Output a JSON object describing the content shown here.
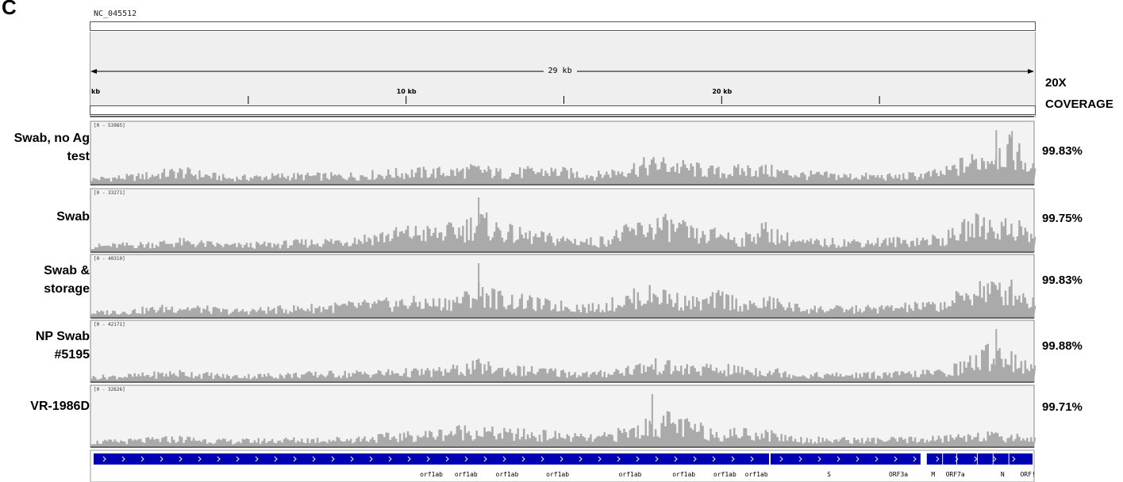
{
  "panel_letter": "C",
  "reference": "NC_045512",
  "scale": {
    "span_label": "29 kb",
    "ticks": [
      "kb",
      "10 kb",
      "20 kb"
    ]
  },
  "coverage_header": [
    "20X",
    "COVERAGE"
  ],
  "colors": {
    "coverage": "#aaaaaa",
    "gene": "#0000b4",
    "track_bg": "#f3f3f3"
  },
  "chart_data": {
    "type": "area",
    "xlabel": "",
    "ylabel": "",
    "x_unit": "kb",
    "x_range": [
      0,
      29.9
    ],
    "series": [
      {
        "name": "Swab, no Ag test",
        "range_label": "[0 - 53985]",
        "max": 53985,
        "coverage": "99.83%",
        "peaks": [
          [
            0,
            0.14
          ],
          [
            1.4,
            0.2
          ],
          [
            2.8,
            0.34
          ],
          [
            4.4,
            0.16
          ],
          [
            6.0,
            0.22
          ],
          [
            8.0,
            0.22
          ],
          [
            10.1,
            0.32
          ],
          [
            11.5,
            0.34
          ],
          [
            12.2,
            0.4
          ],
          [
            13.0,
            0.3
          ],
          [
            14.5,
            0.36
          ],
          [
            16.0,
            0.24
          ],
          [
            17.2,
            0.46
          ],
          [
            18.0,
            0.56
          ],
          [
            18.8,
            0.46
          ],
          [
            20.0,
            0.32
          ],
          [
            21.0,
            0.42
          ],
          [
            22.5,
            0.26
          ],
          [
            24.0,
            0.22
          ],
          [
            25.5,
            0.2
          ],
          [
            27.0,
            0.3
          ],
          [
            27.5,
            0.5
          ],
          [
            28.3,
            0.72
          ],
          [
            28.8,
            0.92
          ],
          [
            29.3,
            0.92
          ],
          [
            29.8,
            0.4
          ]
        ],
        "spikes": [
          [
            28.7,
            1.0
          ],
          [
            29.2,
            0.98
          ]
        ]
      },
      {
        "name": "Swab",
        "range_label": "[0 - 33271]",
        "max": 33271,
        "coverage": "99.75%",
        "peaks": [
          [
            0,
            0.14
          ],
          [
            1.4,
            0.18
          ],
          [
            2.8,
            0.26
          ],
          [
            4.4,
            0.16
          ],
          [
            6.0,
            0.2
          ],
          [
            8.0,
            0.3
          ],
          [
            10.1,
            0.52
          ],
          [
            11.0,
            0.5
          ],
          [
            11.8,
            0.62
          ],
          [
            12.0,
            0.72
          ],
          [
            12.3,
            0.82
          ],
          [
            12.8,
            0.62
          ],
          [
            13.5,
            0.46
          ],
          [
            14.5,
            0.36
          ],
          [
            16.0,
            0.26
          ],
          [
            17.2,
            0.58
          ],
          [
            18.0,
            0.72
          ],
          [
            18.6,
            0.64
          ],
          [
            19.3,
            0.4
          ],
          [
            20.0,
            0.5
          ],
          [
            20.6,
            0.28
          ],
          [
            21.2,
            0.6
          ],
          [
            22.5,
            0.24
          ],
          [
            24.0,
            0.26
          ],
          [
            25.5,
            0.28
          ],
          [
            27.0,
            0.34
          ],
          [
            27.6,
            0.58
          ],
          [
            28.2,
            0.8
          ],
          [
            28.7,
            0.64
          ],
          [
            29.3,
            0.7
          ],
          [
            29.8,
            0.4
          ]
        ],
        "spikes": [
          [
            12.3,
            1.0
          ]
        ]
      },
      {
        "name": "Swab & storage",
        "range_label": "[0 - 40310]",
        "max": 40310,
        "coverage": "99.83%",
        "peaks": [
          [
            0,
            0.12
          ],
          [
            1.4,
            0.18
          ],
          [
            2.8,
            0.28
          ],
          [
            4.4,
            0.16
          ],
          [
            6.0,
            0.22
          ],
          [
            8.0,
            0.3
          ],
          [
            10.1,
            0.4
          ],
          [
            11.0,
            0.38
          ],
          [
            11.8,
            0.5
          ],
          [
            12.3,
            0.72
          ],
          [
            13.0,
            0.5
          ],
          [
            14.5,
            0.34
          ],
          [
            16.0,
            0.26
          ],
          [
            17.2,
            0.54
          ],
          [
            18.0,
            0.66
          ],
          [
            18.6,
            0.46
          ],
          [
            19.3,
            0.38
          ],
          [
            20.0,
            0.54
          ],
          [
            20.8,
            0.3
          ],
          [
            21.5,
            0.42
          ],
          [
            22.5,
            0.24
          ],
          [
            24.0,
            0.22
          ],
          [
            25.5,
            0.26
          ],
          [
            27.0,
            0.34
          ],
          [
            27.6,
            0.56
          ],
          [
            28.2,
            0.82
          ],
          [
            28.7,
            0.72
          ],
          [
            29.3,
            0.74
          ],
          [
            29.8,
            0.42
          ]
        ],
        "spikes": [
          [
            12.3,
            1.0
          ]
        ]
      },
      {
        "name": "NP Swab #5195",
        "range_label": "[0 - 42171]",
        "max": 42171,
        "coverage": "99.88%",
        "peaks": [
          [
            0,
            0.12
          ],
          [
            1.4,
            0.16
          ],
          [
            2.8,
            0.24
          ],
          [
            4.4,
            0.14
          ],
          [
            6.0,
            0.18
          ],
          [
            8.0,
            0.22
          ],
          [
            10.1,
            0.26
          ],
          [
            11.0,
            0.28
          ],
          [
            11.8,
            0.36
          ],
          [
            12.3,
            0.44
          ],
          [
            13.0,
            0.34
          ],
          [
            14.5,
            0.28
          ],
          [
            16.0,
            0.2
          ],
          [
            17.2,
            0.38
          ],
          [
            18.0,
            0.46
          ],
          [
            18.6,
            0.36
          ],
          [
            20.0,
            0.34
          ],
          [
            21.5,
            0.3
          ],
          [
            22.5,
            0.18
          ],
          [
            24.0,
            0.18
          ],
          [
            25.5,
            0.2
          ],
          [
            27.0,
            0.26
          ],
          [
            27.6,
            0.44
          ],
          [
            28.2,
            0.66
          ],
          [
            28.7,
            0.86
          ],
          [
            29.3,
            0.6
          ],
          [
            29.8,
            0.32
          ]
        ],
        "spikes": [
          [
            28.7,
            1.0
          ]
        ]
      },
      {
        "name": "VR-1986D",
        "range_label": "[0 - 32626]",
        "max": 32626,
        "coverage": "99.71%",
        "peaks": [
          [
            0,
            0.12
          ],
          [
            1.4,
            0.16
          ],
          [
            2.8,
            0.22
          ],
          [
            4.4,
            0.14
          ],
          [
            6.0,
            0.18
          ],
          [
            8.0,
            0.2
          ],
          [
            10.1,
            0.3
          ],
          [
            11.0,
            0.36
          ],
          [
            11.8,
            0.46
          ],
          [
            12.3,
            0.42
          ],
          [
            13.0,
            0.36
          ],
          [
            14.5,
            0.32
          ],
          [
            16.0,
            0.22
          ],
          [
            17.2,
            0.46
          ],
          [
            18.0,
            0.64
          ],
          [
            18.3,
            0.7
          ],
          [
            18.8,
            0.56
          ],
          [
            19.3,
            0.46
          ],
          [
            20.0,
            0.36
          ],
          [
            21.0,
            0.4
          ],
          [
            22.5,
            0.2
          ],
          [
            24.0,
            0.18
          ],
          [
            25.5,
            0.18
          ],
          [
            27.0,
            0.22
          ],
          [
            27.6,
            0.3
          ],
          [
            28.2,
            0.34
          ],
          [
            28.7,
            0.26
          ],
          [
            29.3,
            0.28
          ],
          [
            29.8,
            0.22
          ]
        ],
        "spikes": [
          [
            17.8,
            1.0
          ]
        ]
      }
    ],
    "genes": {
      "segments": [
        [
          0.1,
          21.5
        ],
        [
          21.55,
          26.3
        ],
        [
          26.5,
          29.85
        ]
      ],
      "labels": [
        {
          "text": "orf1ab",
          "x": 10.8
        },
        {
          "text": "orf1ab",
          "x": 11.9
        },
        {
          "text": "orf1ab",
          "x": 13.2
        },
        {
          "text": "orf1ab",
          "x": 14.8
        },
        {
          "text": "orf1ab",
          "x": 17.1
        },
        {
          "text": "orf1ab",
          "x": 18.8
        },
        {
          "text": "orf1ab",
          "x": 20.1
        },
        {
          "text": "orf1ab",
          "x": 21.1
        },
        {
          "text": "S",
          "x": 23.4
        },
        {
          "text": "ORF3a",
          "x": 25.6
        },
        {
          "text": "M",
          "x": 26.7
        },
        {
          "text": "ORF7a",
          "x": 27.4
        },
        {
          "text": "N",
          "x": 28.9
        },
        {
          "text": "ORF!",
          "x": 29.7
        }
      ]
    }
  }
}
